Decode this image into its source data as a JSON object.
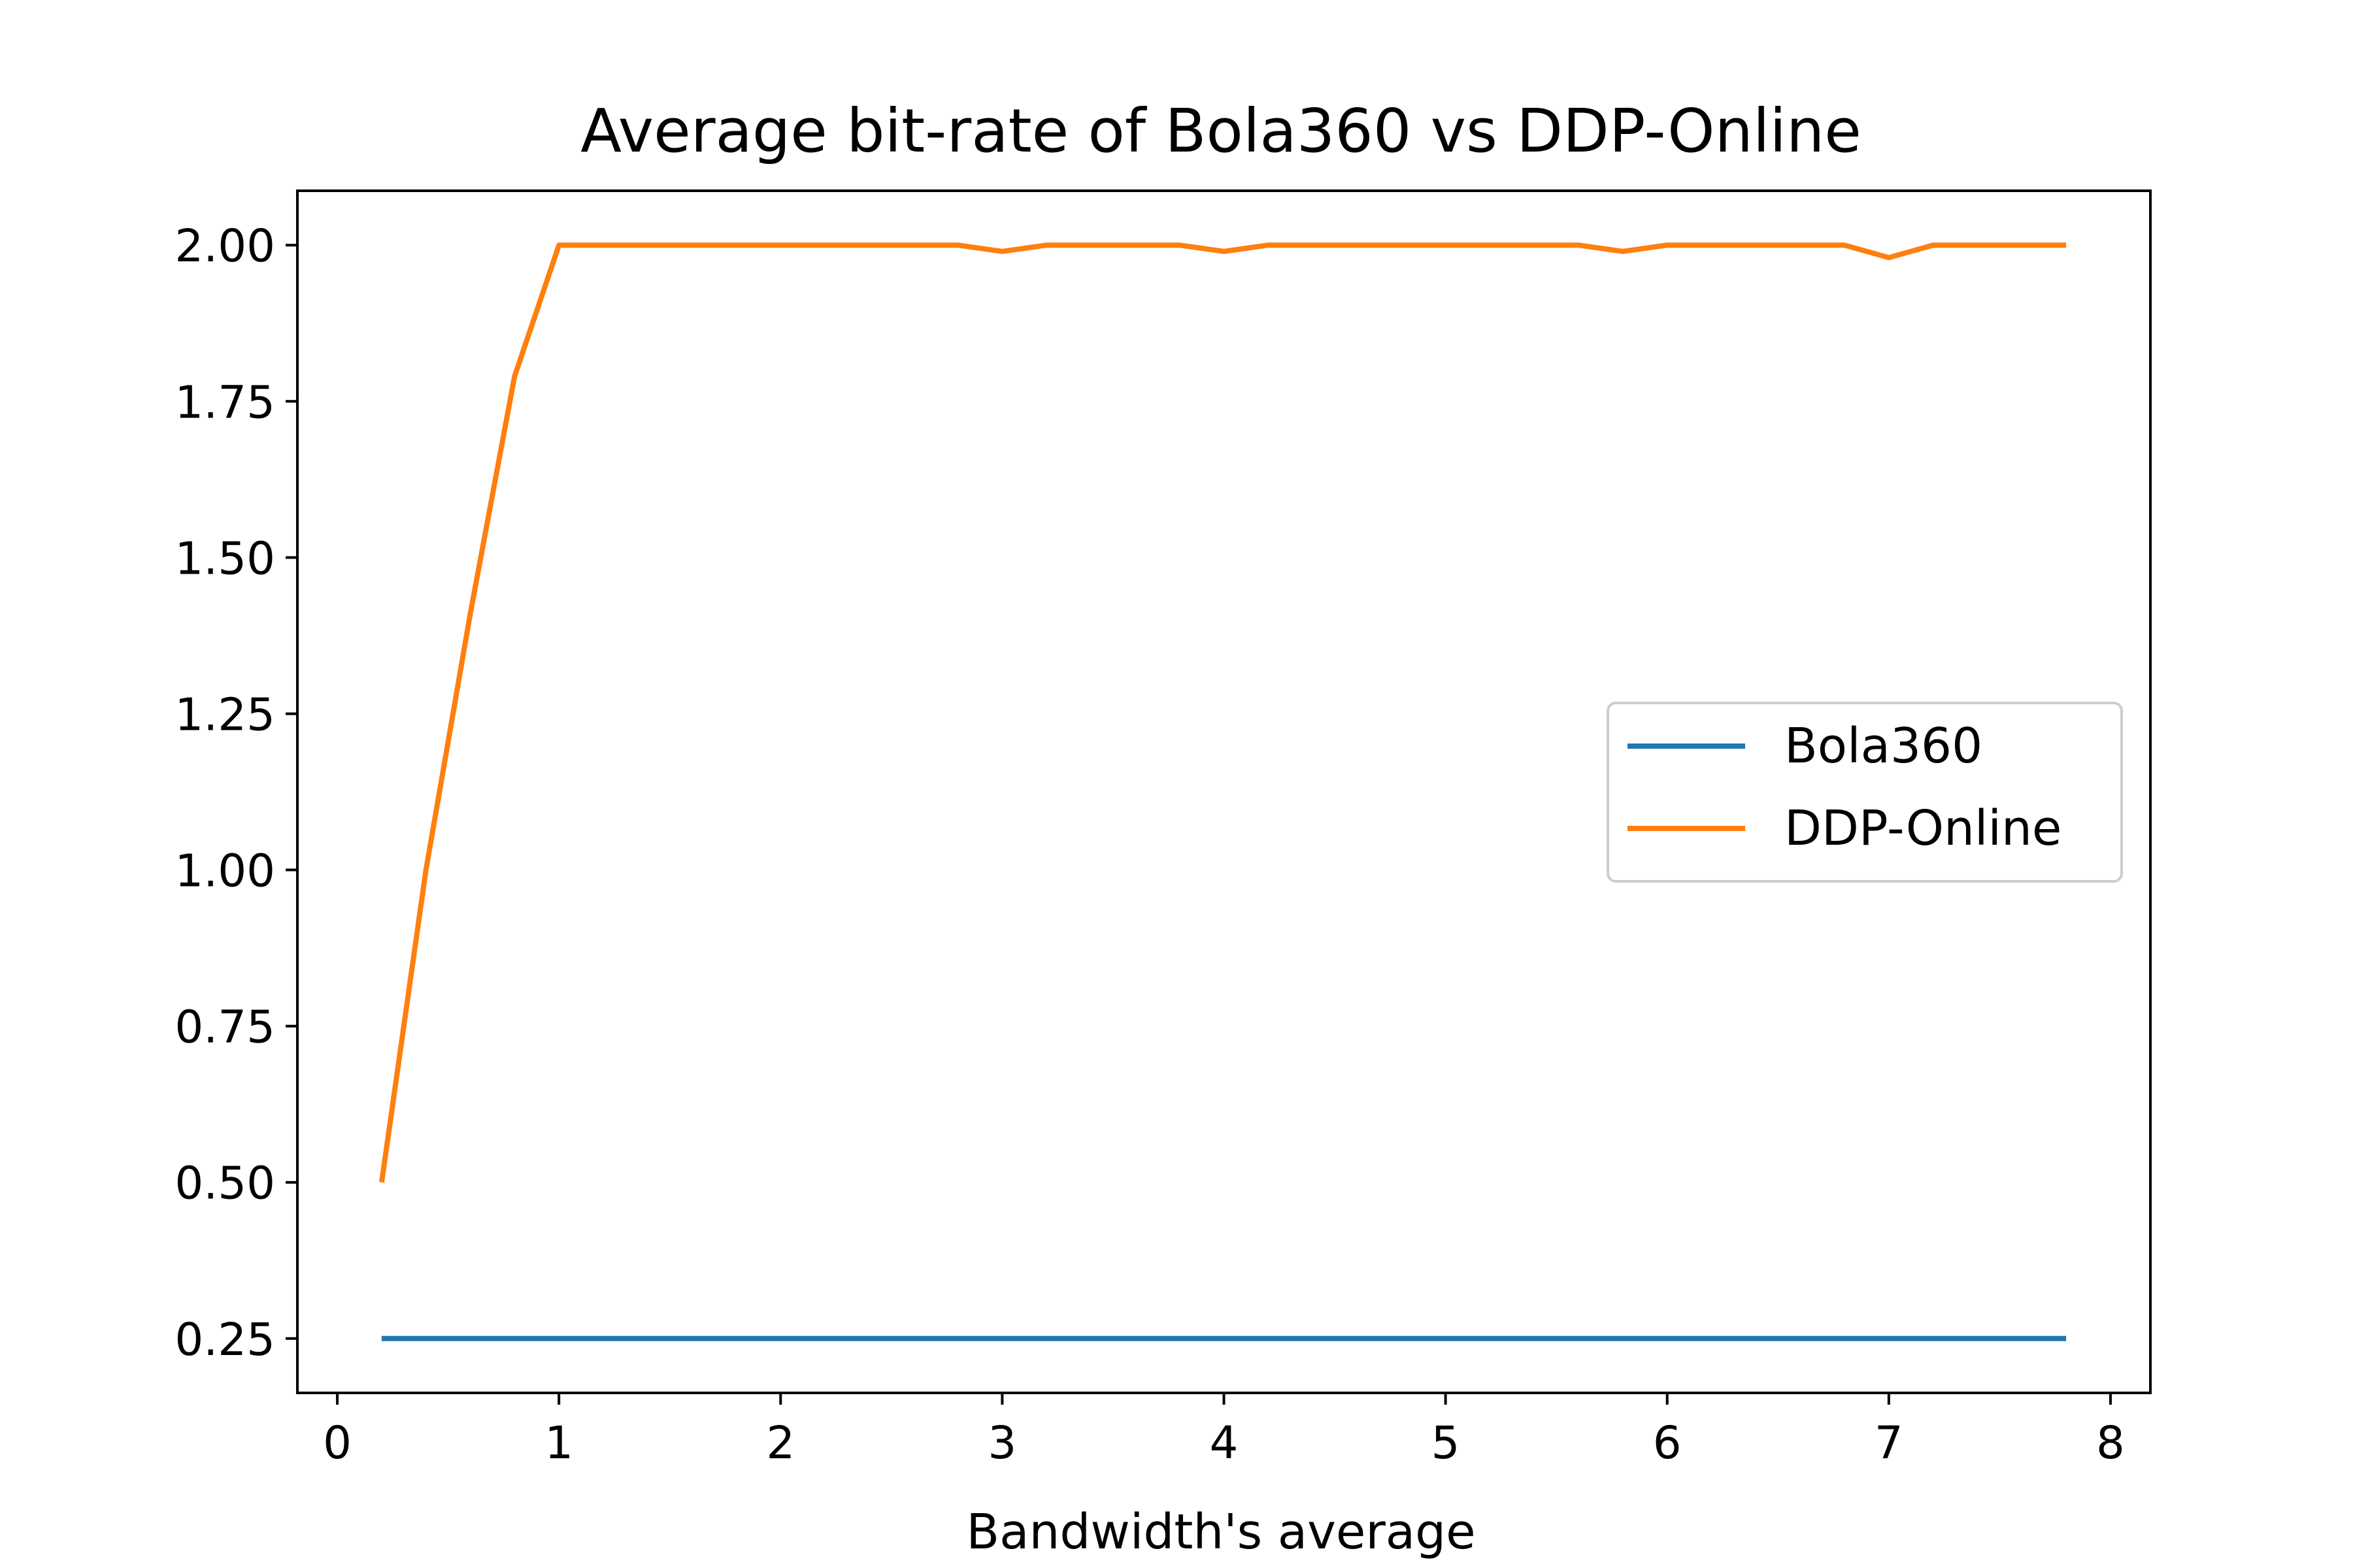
{
  "chart_data": {
    "type": "line",
    "title": "Average bit-rate of Bola360 vs DDP-Online",
    "xlabel": "Bandwidth's average",
    "ylabel": "",
    "xlim": [
      -0.18,
      8.18
    ],
    "ylim": [
      0.163,
      2.087
    ],
    "xticks": [
      "0",
      "1",
      "2",
      "3",
      "4",
      "5",
      "6",
      "7",
      "8"
    ],
    "yticks": [
      "0.25",
      "0.50",
      "0.75",
      "1.00",
      "1.25",
      "1.50",
      "1.75",
      "2.00"
    ],
    "grid": false,
    "legend_position": "center-right",
    "x": [
      0.2,
      0.4,
      0.6,
      0.8,
      1.0,
      1.2,
      1.4,
      1.6,
      1.8,
      2.0,
      2.2,
      2.4,
      2.6,
      2.8,
      3.0,
      3.2,
      3.4,
      3.6,
      3.8,
      4.0,
      4.2,
      4.4,
      4.6,
      4.8,
      5.0,
      5.2,
      5.4,
      5.6,
      5.8,
      6.0,
      6.2,
      6.4,
      6.6,
      6.8,
      7.0,
      7.2,
      7.4,
      7.6,
      7.8
    ],
    "series": [
      {
        "name": "Bola360",
        "color": "#1f77b4",
        "values": [
          0.25,
          0.25,
          0.25,
          0.25,
          0.25,
          0.25,
          0.25,
          0.25,
          0.25,
          0.25,
          0.25,
          0.25,
          0.25,
          0.25,
          0.25,
          0.25,
          0.25,
          0.25,
          0.25,
          0.25,
          0.25,
          0.25,
          0.25,
          0.25,
          0.25,
          0.25,
          0.25,
          0.25,
          0.25,
          0.25,
          0.25,
          0.25,
          0.25,
          0.25,
          0.25,
          0.25,
          0.25,
          0.25,
          0.25
        ]
      },
      {
        "name": "DDP-Online",
        "color": "#ff7f0e",
        "values": [
          0.5,
          1.0,
          1.41,
          1.79,
          2.0,
          2.0,
          2.0,
          2.0,
          2.0,
          2.0,
          2.0,
          2.0,
          2.0,
          2.0,
          1.99,
          2.0,
          2.0,
          2.0,
          2.0,
          1.99,
          2.0,
          2.0,
          2.0,
          2.0,
          2.0,
          2.0,
          2.0,
          2.0,
          1.99,
          2.0,
          2.0,
          2.0,
          2.0,
          2.0,
          1.98,
          2.0,
          2.0,
          2.0,
          2.0
        ]
      }
    ]
  }
}
